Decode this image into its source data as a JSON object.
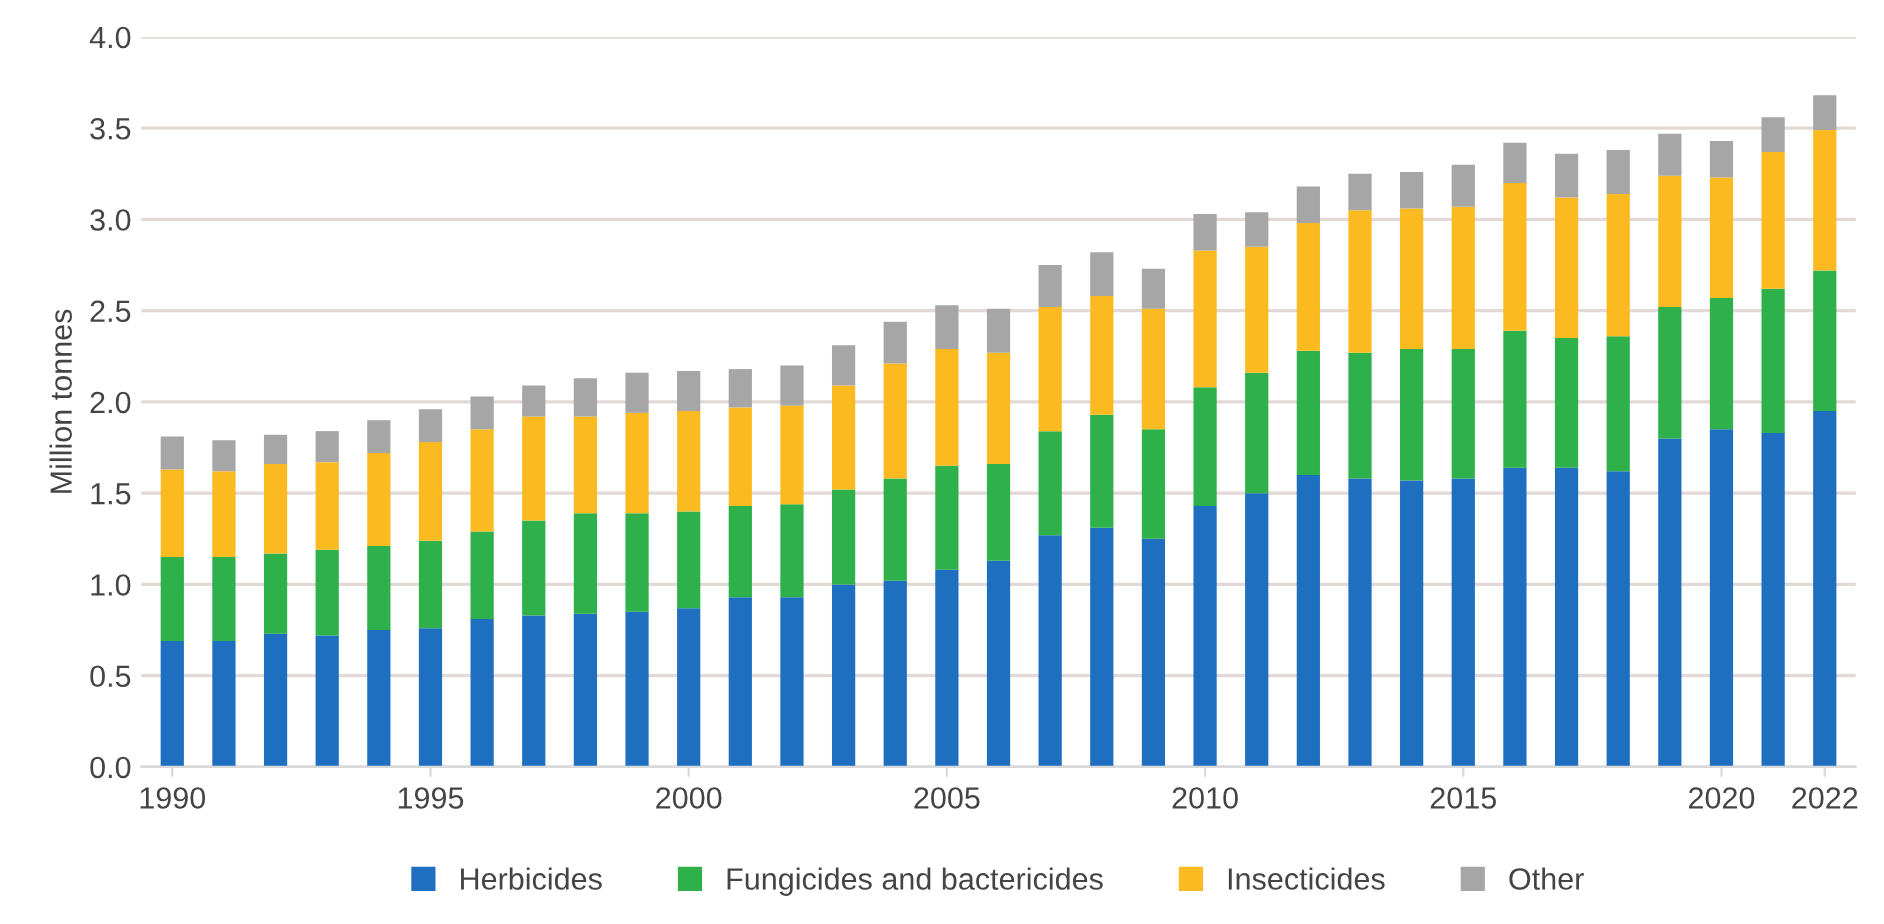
{
  "chart_data": {
    "type": "bar",
    "stacked": true,
    "ylabel": "Million tonnes",
    "x": [
      1990,
      1991,
      1992,
      1993,
      1994,
      1995,
      1996,
      1997,
      1998,
      1999,
      2000,
      2001,
      2002,
      2003,
      2004,
      2005,
      2006,
      2007,
      2008,
      2009,
      2010,
      2011,
      2012,
      2013,
      2014,
      2015,
      2016,
      2017,
      2018,
      2019,
      2020,
      2021,
      2022
    ],
    "series": [
      {
        "name": "Herbicides",
        "color": "#1f6fc0",
        "values": [
          0.69,
          0.69,
          0.73,
          0.72,
          0.75,
          0.76,
          0.81,
          0.83,
          0.84,
          0.85,
          0.87,
          0.93,
          0.93,
          1.0,
          1.02,
          1.08,
          1.13,
          1.27,
          1.31,
          1.25,
          1.43,
          1.5,
          1.6,
          1.58,
          1.57,
          1.58,
          1.64,
          1.64,
          1.62,
          1.8,
          1.85,
          1.83,
          1.95
        ]
      },
      {
        "name": "Fungicides and bactericides",
        "color": "#2eb04a",
        "values": [
          0.46,
          0.46,
          0.44,
          0.47,
          0.46,
          0.48,
          0.48,
          0.52,
          0.55,
          0.54,
          0.53,
          0.5,
          0.51,
          0.52,
          0.56,
          0.57,
          0.53,
          0.57,
          0.62,
          0.6,
          0.65,
          0.66,
          0.68,
          0.69,
          0.72,
          0.71,
          0.75,
          0.71,
          0.74,
          0.72,
          0.72,
          0.79,
          0.77
        ]
      },
      {
        "name": "Insecticides",
        "color": "#fbbb20",
        "values": [
          0.48,
          0.47,
          0.49,
          0.48,
          0.51,
          0.54,
          0.56,
          0.57,
          0.53,
          0.55,
          0.55,
          0.54,
          0.54,
          0.57,
          0.63,
          0.64,
          0.61,
          0.68,
          0.65,
          0.66,
          0.75,
          0.69,
          0.7,
          0.78,
          0.77,
          0.78,
          0.81,
          0.77,
          0.78,
          0.72,
          0.66,
          0.75,
          0.77
        ]
      },
      {
        "name": "Other",
        "color": "#a6a6a6",
        "values": [
          0.18,
          0.17,
          0.16,
          0.17,
          0.18,
          0.18,
          0.18,
          0.17,
          0.21,
          0.22,
          0.22,
          0.21,
          0.22,
          0.22,
          0.23,
          0.24,
          0.24,
          0.23,
          0.24,
          0.22,
          0.2,
          0.19,
          0.2,
          0.2,
          0.2,
          0.23,
          0.22,
          0.24,
          0.24,
          0.23,
          0.2,
          0.19,
          0.19
        ]
      }
    ],
    "xlim": [
      1989.4,
      2022.6
    ],
    "xticks": [
      1990,
      1995,
      2000,
      2005,
      2010,
      2015,
      2020,
      2022
    ],
    "ylim": [
      0,
      4.0
    ],
    "yticks": [
      {
        "value": 0,
        "label": "0.0"
      },
      {
        "value": 0.5,
        "label": "0.5"
      },
      {
        "value": 1.0,
        "label": "1.0"
      },
      {
        "value": 1.5,
        "label": "1.5"
      },
      {
        "value": 2.0,
        "label": "2.0"
      },
      {
        "value": 2.5,
        "label": "2.5"
      },
      {
        "value": 3.0,
        "label": "3.0"
      },
      {
        "value": 3.5,
        "label": "3.5"
      },
      {
        "value": 4.0,
        "label": "4.0"
      }
    ],
    "grid": "y",
    "legend": "bottom"
  }
}
